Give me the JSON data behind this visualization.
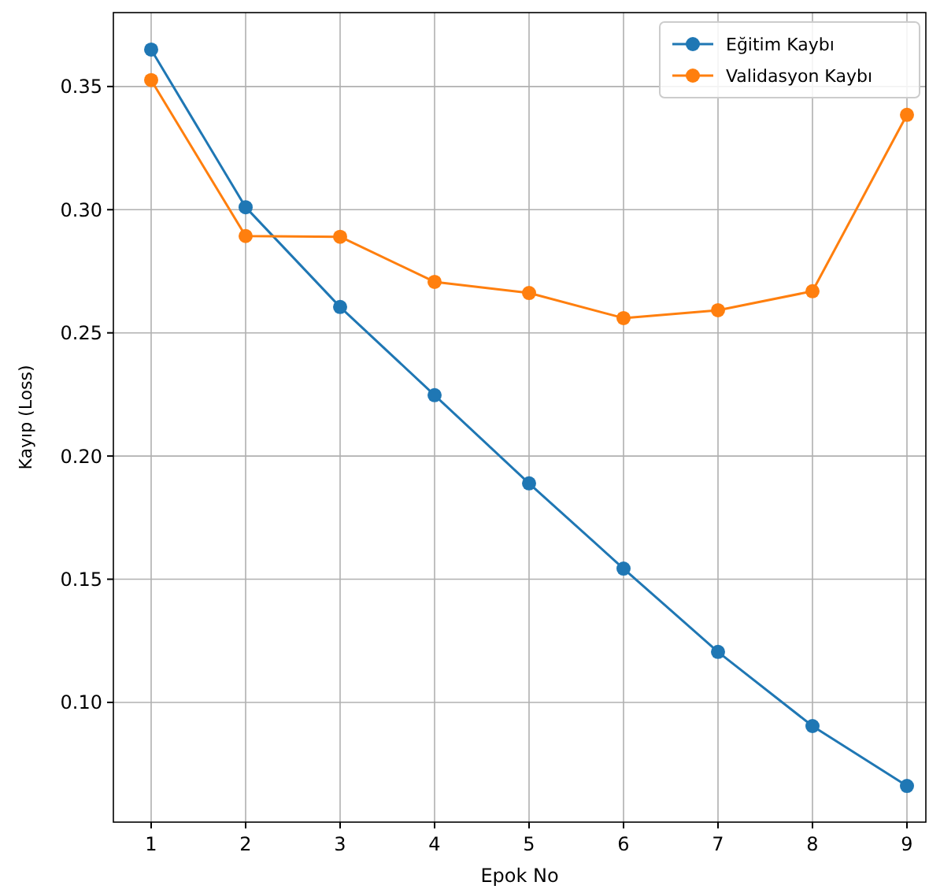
{
  "chart_data": {
    "type": "line",
    "xlabel": "Epok No",
    "ylabel": "Kayıp (Loss)",
    "x": [
      1,
      2,
      3,
      4,
      5,
      6,
      7,
      8,
      9
    ],
    "series": [
      {
        "name": "Eğitim Kaybı",
        "color": "#1f77b4",
        "values": [
          0.365,
          0.301,
          0.2605,
          0.2247,
          0.1889,
          0.1543,
          0.1205,
          0.0904,
          0.0661
        ]
      },
      {
        "name": "Validasyon Kaybı",
        "color": "#ff7f0e",
        "values": [
          0.3526,
          0.2893,
          0.289,
          0.2707,
          0.2662,
          0.256,
          0.2592,
          0.2669,
          0.3385
        ]
      }
    ],
    "xlim": [
      0.6,
      9.2
    ],
    "xticks": [
      1,
      2,
      3,
      4,
      5,
      6,
      7,
      8,
      9
    ],
    "ylim": [
      0.0514,
      0.38
    ],
    "yticks": [
      {
        "value": 0.1,
        "label": "0.10"
      },
      {
        "value": 0.15,
        "label": "0.15"
      },
      {
        "value": 0.2,
        "label": "0.20"
      },
      {
        "value": 0.25,
        "label": "0.25"
      },
      {
        "value": 0.3,
        "label": "0.30"
      },
      {
        "value": 0.35,
        "label": "0.35"
      }
    ],
    "grid": true,
    "legend": "top right",
    "marker": "circle",
    "line_style": "solid"
  }
}
